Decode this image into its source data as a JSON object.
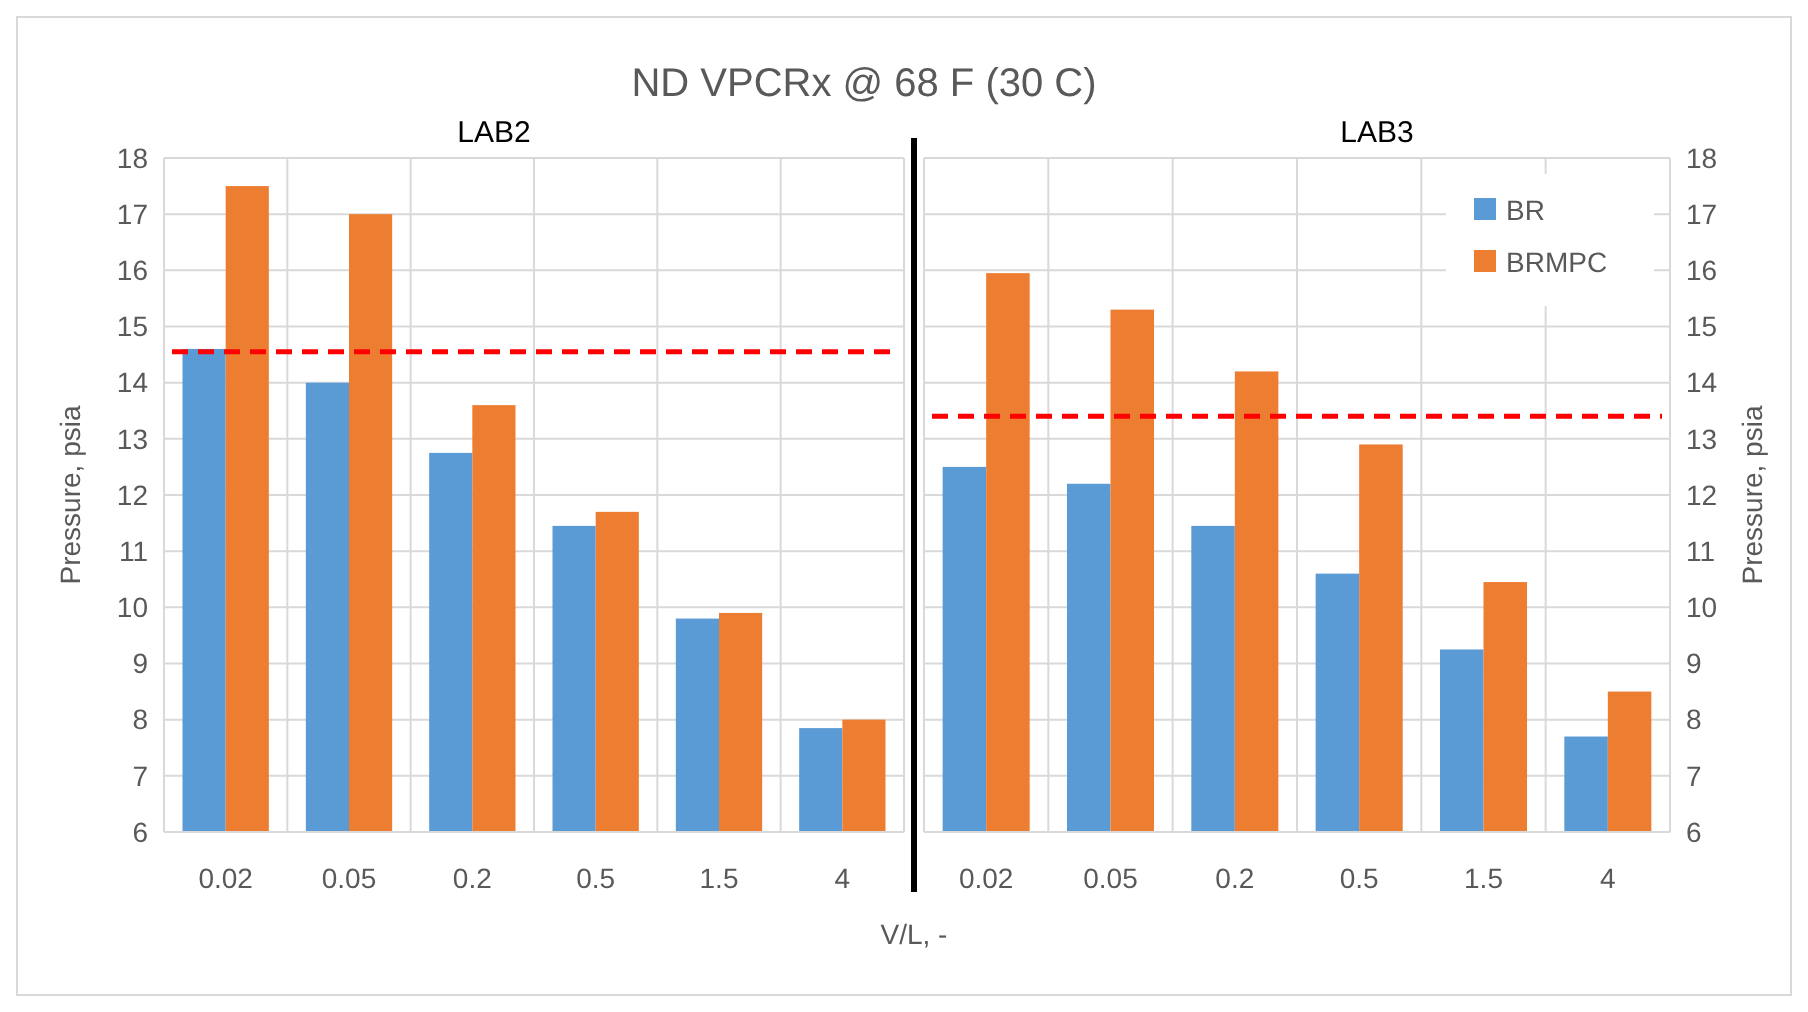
{
  "chart_data": [
    {
      "type": "bar",
      "title": "ND VPCRx @ 68 F (30 C)",
      "xlabel": "V/L, -",
      "ylabel": "Pressure, psia",
      "annotations": [
        "LAB2"
      ],
      "categories": [
        "0.02",
        "0.05",
        "0.2",
        "0.5",
        "1.5",
        "4"
      ],
      "series": [
        {
          "color": "#5b9bd5",
          "values": [
            14.6,
            14.0,
            12.75,
            11.45,
            9.8,
            7.85
          ]
        },
        {
          "color": "#ed7d31",
          "values": [
            17.5,
            17.0,
            13.6,
            11.7,
            9.9,
            8.0
          ]
        }
      ],
      "ylim": [
        6,
        18
      ],
      "yticks": [
        6,
        7,
        8,
        9,
        10,
        11,
        12,
        13,
        14,
        15,
        16,
        17,
        18
      ],
      "grid": true,
      "legend": false,
      "ref_lines": [
        {
          "axis": "y",
          "value": 14.55,
          "color": "#ff0000",
          "line_style": "dashed"
        }
      ]
    },
    {
      "type": "bar",
      "ylabel": "Pressure, psia",
      "annotations": [
        "LAB3"
      ],
      "categories": [
        "0.02",
        "0.05",
        "0.2",
        "0.5",
        "1.5",
        "4"
      ],
      "series": [
        {
          "name": "BR",
          "color": "#5b9bd5",
          "values": [
            12.5,
            12.2,
            11.45,
            10.6,
            9.25,
            7.7
          ]
        },
        {
          "name": "BRMPC",
          "color": "#ed7d31",
          "values": [
            15.95,
            15.3,
            14.2,
            12.9,
            10.45,
            8.5
          ]
        }
      ],
      "ylim": [
        6,
        18
      ],
      "yticks": [
        6,
        7,
        8,
        9,
        10,
        11,
        12,
        13,
        14,
        15,
        16,
        17,
        18
      ],
      "grid": true,
      "legend": "top right",
      "ref_lines": [
        {
          "axis": "y",
          "value": 13.4,
          "color": "#ff0000",
          "line_style": "dashed"
        }
      ]
    }
  ]
}
